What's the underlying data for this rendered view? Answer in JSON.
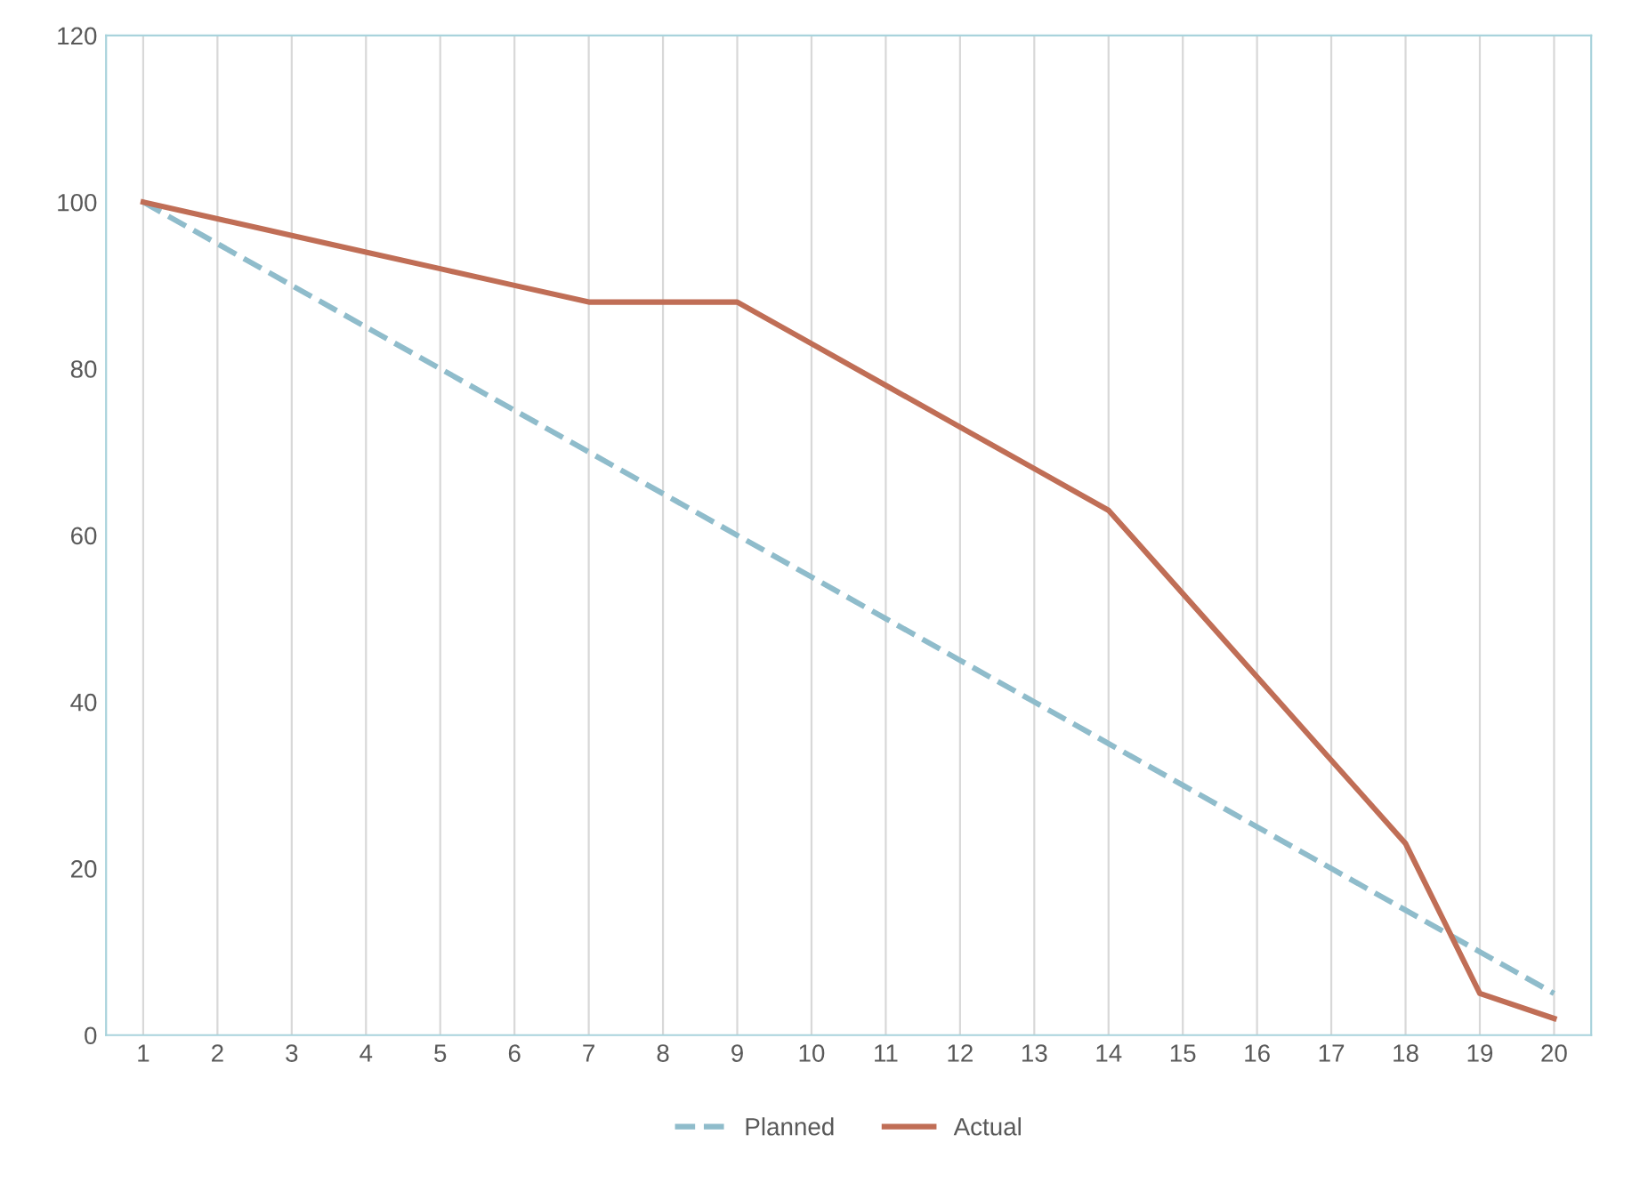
{
  "chart_data": {
    "type": "line",
    "categories": [
      "1",
      "2",
      "3",
      "4",
      "5",
      "6",
      "7",
      "8",
      "9",
      "10",
      "11",
      "12",
      "13",
      "14",
      "15",
      "16",
      "17",
      "18",
      "19",
      "20"
    ],
    "series": [
      {
        "name": "Planned",
        "color": "#8fbccb",
        "line_style": "dashed",
        "values": [
          100,
          95,
          90,
          85,
          80,
          75,
          70,
          65,
          60,
          55,
          50,
          45,
          40,
          35,
          30,
          25,
          20,
          15,
          10,
          5
        ]
      },
      {
        "name": "Actual",
        "color": "#c06e56",
        "line_style": "solid",
        "values": [
          100,
          98,
          96,
          94,
          92,
          90,
          88,
          88,
          88,
          83,
          78,
          73,
          68,
          63,
          53,
          43,
          33,
          23,
          5,
          2
        ]
      }
    ],
    "ylim": [
      0,
      120
    ],
    "yticks": [
      0,
      20,
      40,
      60,
      80,
      100,
      120
    ],
    "grid": "x",
    "legend": "bottom",
    "marker": "none"
  }
}
